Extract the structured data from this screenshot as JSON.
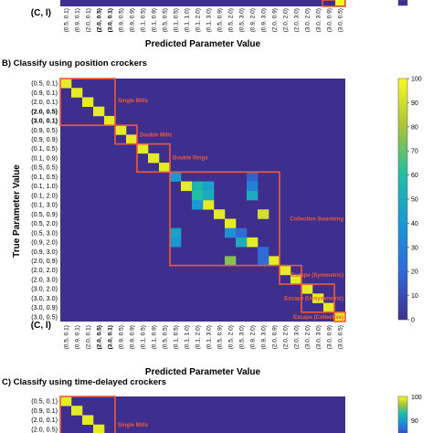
{
  "panels": {
    "top": {
      "xlabel": "Predicted Parameter Value",
      "corner_label": "(C, l)"
    },
    "b": {
      "title": "B) Classify using position crockers"
    },
    "c": {
      "title": "C) Classify using time-delayed crockers"
    }
  },
  "colors": {
    "low": "#3e2f8e",
    "high": "#f9f921",
    "box": "#f05a3a",
    "box_text": "#f05a3a"
  },
  "chart_data": [
    {
      "type": "heatmap",
      "panel": "B",
      "title": "B) Classify using position crockers",
      "xlabel": "Predicted Parameter Value",
      "ylabel": "True Parameter Value",
      "corner_label": "(C, l)",
      "labels": [
        "(0.5, 0.1)",
        "(0.9, 0.1)",
        "(2.0, 0.1)",
        "(2.0, 0.5)",
        "(3.0, 0.1)",
        "(0.9, 0.5)",
        "(0.9, 0.9)",
        "(0.1, 0.5)",
        "(0.1, 0.9)",
        "(0.5, 0.5)",
        "(0.1, 0.5)",
        "(0.1, 1.0)",
        "(0.1, 2.0)",
        "(0.1, 3.0)",
        "(0.5, 0.9)",
        "(0.5, 2.0)",
        "(0.5, 3.0)",
        "(0.9, 2.0)",
        "(0.9, 3.0)",
        "(2.0, 0.9)",
        "(2.0, 2.0)",
        "(2.0, 3.0)",
        "(3.0, 2.0)",
        "(3.0, 3.0)",
        "(3.0, 0.9)",
        "(3.0, 0.5)"
      ],
      "bold_labels": [
        "(2.0, 0.5)",
        "(3.0, 0.1)"
      ],
      "colorbar": {
        "min": 0,
        "max": 100,
        "ticks": [
          0,
          10,
          20,
          30,
          40,
          50,
          60,
          70,
          80,
          90,
          100
        ]
      },
      "diagonal_value": 95,
      "offdiagonal_cells": [
        {
          "row": 10,
          "col": 10,
          "value": 40
        },
        {
          "row": 10,
          "col": 17,
          "value": 18
        },
        {
          "row": 11,
          "col": 12,
          "value": 55
        },
        {
          "row": 11,
          "col": 13,
          "value": 45
        },
        {
          "row": 12,
          "col": 12,
          "value": 60
        },
        {
          "row": 12,
          "col": 13,
          "value": 50
        },
        {
          "row": 13,
          "col": 12,
          "value": 40
        },
        {
          "row": 12,
          "col": 17,
          "value": 50
        },
        {
          "row": 11,
          "col": 17,
          "value": 30
        },
        {
          "row": 14,
          "col": 18,
          "value": 90
        },
        {
          "row": 16,
          "col": 10,
          "value": 45
        },
        {
          "row": 17,
          "col": 10,
          "value": 40
        },
        {
          "row": 16,
          "col": 15,
          "value": 35
        },
        {
          "row": 16,
          "col": 16,
          "value": 20
        },
        {
          "row": 17,
          "col": 16,
          "value": 50
        },
        {
          "row": 18,
          "col": 18,
          "value": 20
        },
        {
          "row": 19,
          "col": 15,
          "value": 75
        },
        {
          "row": 19,
          "col": 18,
          "value": 20
        }
      ],
      "groups": [
        {
          "name": "Single Mills",
          "start": 0,
          "end": 4
        },
        {
          "name": "Double Mills",
          "start": 5,
          "end": 6
        },
        {
          "name": "Double Rings",
          "start": 7,
          "end": 9
        },
        {
          "name": "Collective Swarming",
          "start": 10,
          "end": 19
        },
        {
          "name": "Escape (Symmetric)",
          "start": 20,
          "end": 21
        },
        {
          "name": "Escape (Unsymmetric)",
          "start": 22,
          "end": 24
        },
        {
          "name": "Escape (Collective)",
          "start": 25,
          "end": 25
        }
      ]
    },
    {
      "type": "heatmap",
      "panel": "top-partial",
      "xlabel": "Predicted Parameter Value",
      "corner_label": "(C, l)",
      "labels": [
        "(0.5, 0.1)",
        "(0.9, 0.1)",
        "(2.0, 0.1)",
        "(2.0, 0.5)",
        "(3.0, 0.1)",
        "(0.9, 0.5)",
        "(0.9, 0.9)",
        "(0.1, 0.5)",
        "(0.1, 0.9)",
        "(0.5, 0.5)",
        "(0.1, 0.5)",
        "(0.1, 1.0)",
        "(0.1, 2.0)",
        "(0.1, 3.0)",
        "(0.5, 0.9)",
        "(0.5, 2.0)",
        "(0.5, 3.0)",
        "(0.9, 2.0)",
        "(0.9, 3.0)",
        "(2.0, 0.9)",
        "(2.0, 2.0)",
        "(2.0, 3.0)",
        "(3.0, 2.0)",
        "(3.0, 3.0)",
        "(3.0, 0.9)",
        "(3.0, 0.5)"
      ],
      "bold_labels": [
        "(2.0, 0.5)",
        "(3.0, 0.1)"
      ]
    },
    {
      "type": "heatmap",
      "panel": "C",
      "title": "C) Classify using time-delayed crockers",
      "labels": [
        "(0.5, 0.1)",
        "(0.9, 0.1)",
        "(2.0, 0.1)",
        "(2.0, 0.5)"
      ],
      "colorbar": {
        "max": 100,
        "ticks": [
          100,
          90
        ]
      },
      "groups": [
        {
          "name": "Single Mills",
          "start": 0,
          "end": 4
        }
      ]
    }
  ]
}
